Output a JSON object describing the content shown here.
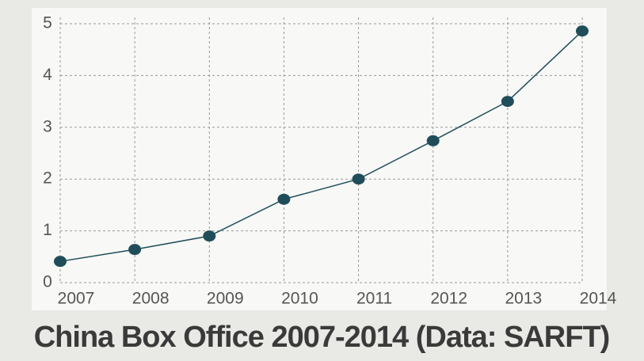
{
  "chart_data": {
    "type": "line",
    "title": "China Box Office 2007-2014 (Data: SARFT)",
    "x": [
      2007,
      2008,
      2009,
      2010,
      2011,
      2012,
      2013,
      2014
    ],
    "series": [
      {
        "color": "#1f4e5a",
        "values": [
          0.41,
          0.64,
          0.9,
          1.61,
          2.0,
          2.74,
          3.5,
          4.86
        ]
      }
    ],
    "xlim": [
      2007,
      2014
    ],
    "xticks": [
      2007,
      2008,
      2009,
      2010,
      2011,
      2012,
      2013,
      2014
    ],
    "ylim": [
      0,
      5
    ],
    "yticks": [
      0,
      1,
      2,
      3,
      4,
      5
    ],
    "grid": true
  }
}
